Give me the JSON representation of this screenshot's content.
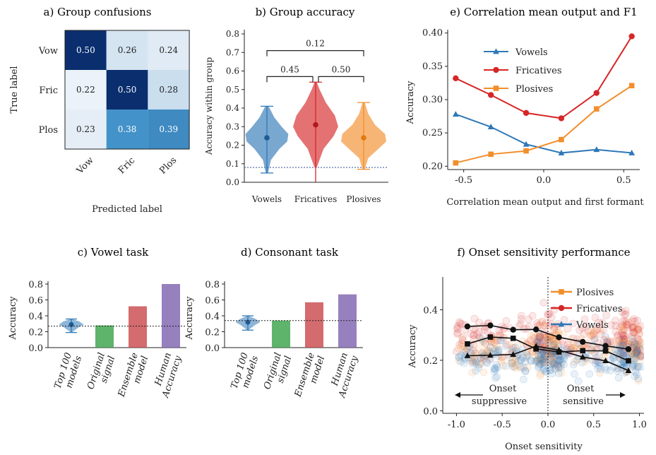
{
  "colors": {
    "blue": "#2f78b7",
    "red": "#d62728",
    "orange": "#f28e2b",
    "green": "#3aa34a",
    "purple": "#8064b0",
    "ens": "#c94a4f",
    "dark": "#111111"
  },
  "chart_data": [
    {
      "panel": "a",
      "type": "heatmap",
      "title": "a) Group confusions",
      "xlabel": "Predicted label",
      "ylabel": "True label",
      "rows": [
        "Vow",
        "Fric",
        "Plos"
      ],
      "cols": [
        "Vow",
        "Fric",
        "Plos"
      ],
      "values": [
        [
          0.5,
          0.26,
          0.24
        ],
        [
          0.22,
          0.5,
          0.28
        ],
        [
          0.23,
          0.38,
          0.39
        ]
      ],
      "cell_text": [
        [
          "0.50",
          "0.26",
          "0.24"
        ],
        [
          "0.22",
          "0.50",
          "0.28"
        ],
        [
          "0.23",
          "0.38",
          "0.39"
        ]
      ]
    },
    {
      "panel": "b",
      "type": "violin",
      "title": "b) Group accuracy",
      "ylabel": "Accuracy within group",
      "categories": [
        "Vowels",
        "Fricatives",
        "Plosives"
      ],
      "ylim": [
        0,
        0.8
      ],
      "yticks": [
        "0.0",
        "0.1",
        "0.2",
        "0.3",
        "0.4",
        "0.5",
        "0.6",
        "0.7",
        "0.8"
      ],
      "series": [
        {
          "median": 0.24,
          "min": 0.05,
          "max": 0.41,
          "profile": [
            [
              0.05,
              0.02
            ],
            [
              0.12,
              0.07
            ],
            [
              0.18,
              0.22
            ],
            [
              0.22,
              0.36
            ],
            [
              0.26,
              0.38
            ],
            [
              0.3,
              0.26
            ],
            [
              0.35,
              0.13
            ],
            [
              0.41,
              0.03
            ]
          ]
        },
        {
          "median": 0.31,
          "min": 0.0,
          "max": 0.54,
          "profile": [
            [
              0.08,
              0.02
            ],
            [
              0.18,
              0.14
            ],
            [
              0.25,
              0.32
            ],
            [
              0.3,
              0.4
            ],
            [
              0.36,
              0.34
            ],
            [
              0.43,
              0.18
            ],
            [
              0.5,
              0.07
            ],
            [
              0.54,
              0.02
            ]
          ]
        },
        {
          "median": 0.24,
          "min": 0.07,
          "max": 0.43,
          "profile": [
            [
              0.07,
              0.02
            ],
            [
              0.13,
              0.08
            ],
            [
              0.18,
              0.26
            ],
            [
              0.22,
              0.4
            ],
            [
              0.26,
              0.38
            ],
            [
              0.31,
              0.2
            ],
            [
              0.37,
              0.08
            ],
            [
              0.43,
              0.02
            ]
          ]
        }
      ],
      "chance": 0.08,
      "brackets": [
        {
          "from": 0,
          "to": 2,
          "y": 0.71,
          "label": "0.12"
        },
        {
          "from": 0,
          "to": 1,
          "y": 0.57,
          "label": "0.45"
        },
        {
          "from": 1,
          "to": 2,
          "y": 0.57,
          "label": "0.50"
        }
      ]
    },
    {
      "panel": "e",
      "type": "line",
      "title": "e) Correlation mean output and F1",
      "xlabel": "Correlation mean output and first formant",
      "ylabel": "Accuracy",
      "xlim": [
        -0.6,
        0.6
      ],
      "ylim": [
        0.195,
        0.405
      ],
      "xticks": [
        "-0.5",
        "0.0",
        "0.5"
      ],
      "yticks": [
        "0.20",
        "0.25",
        "0.30",
        "0.35",
        "0.40"
      ],
      "x": [
        -0.55,
        -0.33,
        -0.11,
        0.11,
        0.33,
        0.55
      ],
      "legend_position": "top-left",
      "series": [
        {
          "name": "Vowels",
          "values": [
            0.278,
            0.259,
            0.233,
            0.22,
            0.225,
            0.22
          ]
        },
        {
          "name": "Fricatives",
          "values": [
            0.332,
            0.307,
            0.28,
            0.272,
            0.31,
            0.395
          ]
        },
        {
          "name": "Plosives",
          "values": [
            0.205,
            0.218,
            0.223,
            0.24,
            0.286,
            0.321
          ]
        }
      ]
    },
    {
      "panel": "c",
      "type": "bar",
      "title": "c) Vowel task",
      "ylabel": "Accuracy",
      "ylim": [
        0,
        0.8
      ],
      "yticks": [
        "0.0",
        "0.2",
        "0.4",
        "0.6",
        "0.8"
      ],
      "categories": [
        "Top 100 models",
        "Original signal",
        "Ensemble model",
        "Human Accuracy"
      ],
      "tick_lines": [
        [
          "Top 100",
          "models"
        ],
        [
          "Original",
          "signal"
        ],
        [
          "Ensemble",
          "model"
        ],
        [
          "Human",
          "Accuracy"
        ]
      ],
      "violin": {
        "median": 0.29,
        "min": 0.19,
        "max": 0.36,
        "q1": 0.26,
        "q3": 0.33
      },
      "values": [
        null,
        0.28,
        0.52,
        0.8
      ],
      "chance": 0.27
    },
    {
      "panel": "d",
      "type": "bar",
      "title": "d) Consonant task",
      "ylabel": "Accuracy",
      "ylim": [
        0,
        0.8
      ],
      "yticks": [
        "0.0",
        "0.2",
        "0.4",
        "0.6",
        "0.8"
      ],
      "categories": [
        "Top 100 models",
        "Original signal",
        "Ensemble model",
        "Human Accuracy"
      ],
      "tick_lines": [
        [
          "Top 100",
          "models"
        ],
        [
          "Original",
          "signal"
        ],
        [
          "Ensemble",
          "model"
        ],
        [
          "Human",
          "Accuracy"
        ]
      ],
      "violin": {
        "median": 0.32,
        "min": 0.22,
        "max": 0.4,
        "q1": 0.29,
        "q3": 0.36
      },
      "values": [
        null,
        0.34,
        0.57,
        0.67
      ],
      "chance": 0.34
    },
    {
      "panel": "f",
      "type": "scatter",
      "title": "f) Onset sensitivity performance",
      "xlabel": "Onset sensitivity",
      "ylabel": "Accuracy",
      "xlim": [
        -1.15,
        1.05
      ],
      "ylim": [
        -0.01,
        0.53
      ],
      "xticks": [
        "-1.0",
        "-0.5",
        "0.0",
        "0.5",
        "1.0"
      ],
      "xtick_values": [
        -1.0,
        -0.5,
        0.0,
        0.5,
        1.0
      ],
      "yticks": [
        "0.0",
        "0.2",
        "0.4"
      ],
      "ytick_values": [
        0.0,
        0.2,
        0.4
      ],
      "x": [
        -0.88,
        -0.63,
        -0.38,
        -0.13,
        0.12,
        0.38,
        0.63,
        0.88
      ],
      "legend_position": "top-right",
      "series": [
        {
          "name": "Plosives",
          "values": [
            0.265,
            0.292,
            0.287,
            0.245,
            0.233,
            0.238,
            0.237,
            0.198
          ]
        },
        {
          "name": "Fricatives",
          "values": [
            0.334,
            0.338,
            0.321,
            0.322,
            0.291,
            0.273,
            0.257,
            0.244
          ]
        },
        {
          "name": "Vowels",
          "values": [
            0.218,
            0.22,
            0.223,
            0.256,
            0.24,
            0.213,
            0.198,
            0.159
          ]
        }
      ],
      "annotations": {
        "left": [
          "Onset",
          "suppressive"
        ],
        "right": [
          "Onset",
          "sensitive"
        ]
      }
    }
  ]
}
